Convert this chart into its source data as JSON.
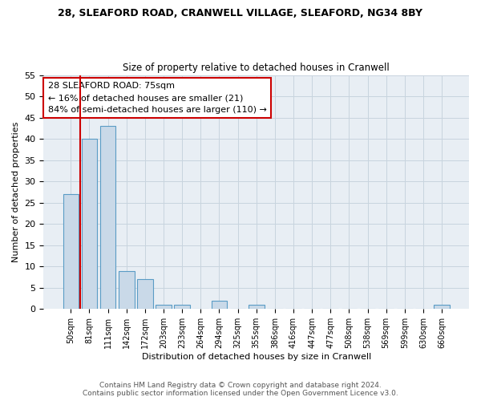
{
  "title_line1": "28, SLEAFORD ROAD, CRANWELL VILLAGE, SLEAFORD, NG34 8BY",
  "title_line2": "Size of property relative to detached houses in Cranwell",
  "xlabel": "Distribution of detached houses by size in Cranwell",
  "ylabel": "Number of detached properties",
  "bar_labels": [
    "50sqm",
    "81sqm",
    "111sqm",
    "142sqm",
    "172sqm",
    "203sqm",
    "233sqm",
    "264sqm",
    "294sqm",
    "325sqm",
    "355sqm",
    "386sqm",
    "416sqm",
    "447sqm",
    "477sqm",
    "508sqm",
    "538sqm",
    "569sqm",
    "599sqm",
    "630sqm",
    "660sqm"
  ],
  "bar_values": [
    27,
    40,
    43,
    9,
    7,
    1,
    1,
    0,
    2,
    0,
    1,
    0,
    0,
    0,
    0,
    0,
    0,
    0,
    0,
    0,
    1
  ],
  "bar_color": "#c9d9e8",
  "bar_edge_color": "#5a9cc5",
  "annotation_line1": "28 SLEAFORD ROAD: 75sqm",
  "annotation_line2": "← 16% of detached houses are smaller (21)",
  "annotation_line3": "84% of semi-detached houses are larger (110) →",
  "annotation_box_color": "#ffffff",
  "annotation_box_edge": "#cc0000",
  "vline_color": "#cc0000",
  "ylim": [
    0,
    55
  ],
  "yticks": [
    0,
    5,
    10,
    15,
    20,
    25,
    30,
    35,
    40,
    45,
    50,
    55
  ],
  "grid_color": "#c8d4de",
  "background_color": "#e8eef4",
  "fig_background": "#ffffff",
  "footer_line1": "Contains HM Land Registry data © Crown copyright and database right 2024.",
  "footer_line2": "Contains public sector information licensed under the Open Government Licence v3.0."
}
